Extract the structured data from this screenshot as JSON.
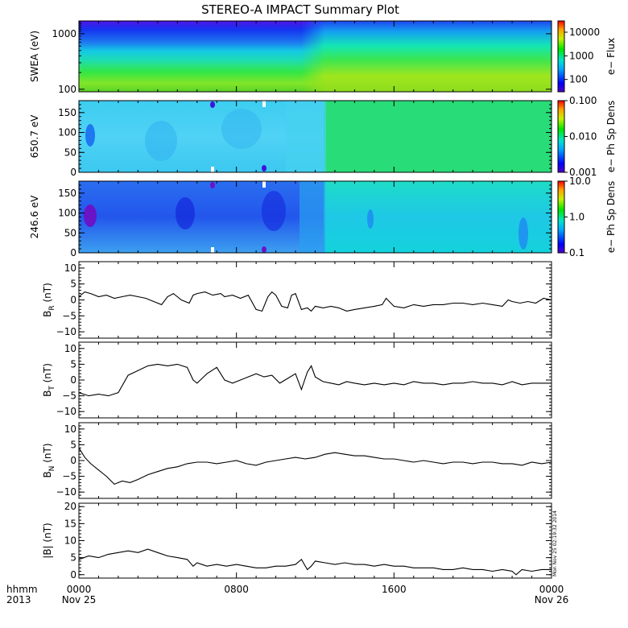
{
  "title": "STEREO-A IMPACT Summary Plot",
  "footer": {
    "format_label": "hhmm",
    "year": "2013",
    "x_ticks": [
      {
        "hour": 0,
        "time": "0000",
        "date": "Nov 25"
      },
      {
        "hour": 8,
        "time": "0800",
        "date": ""
      },
      {
        "hour": 16,
        "time": "1600",
        "date": ""
      },
      {
        "hour": 24,
        "time": "0000",
        "date": "Nov 26"
      }
    ]
  },
  "timestamp": "Mon Nov 25 02:19:32 2014",
  "chart_data": [
    {
      "id": "swea",
      "type": "heatmap",
      "ylabel": "SWEA (eV)",
      "y_scale": "log",
      "ylim": [
        90,
        1700
      ],
      "y_ticks": [
        100,
        1000
      ],
      "y_tick_labels": [
        "100",
        "1000"
      ],
      "colorbar": {
        "label": "e− Flux",
        "scale": "log",
        "range": [
          30,
          30000
        ],
        "ticks": [
          100,
          1000,
          10000
        ],
        "tick_labels": [
          "100",
          "1000",
          "10000"
        ]
      },
      "notes": "high-energy channels ~1500 eV blue/purple, low-energy ~100 eV yellow-green; spectrum hardens after ~12:00"
    },
    {
      "id": "pad650",
      "type": "heatmap",
      "ylabel": "650.7 eV",
      "ylim": [
        0,
        180
      ],
      "y_ticks": [
        0,
        50,
        100,
        150
      ],
      "y_tick_labels": [
        "0",
        "50",
        "100",
        "150"
      ],
      "colorbar": {
        "label": "e− Ph Sp Dens",
        "scale": "log",
        "range": [
          0.001,
          0.1
        ],
        "ticks": [
          0.001,
          0.01,
          0.1
        ],
        "tick_labels": [
          "0.001",
          "0.010",
          "0.100"
        ]
      }
    },
    {
      "id": "pad246",
      "type": "heatmap",
      "ylabel": "246.6 eV",
      "ylim": [
        0,
        180
      ],
      "y_ticks": [
        0,
        50,
        100,
        150
      ],
      "y_tick_labels": [
        "0",
        "50",
        "100",
        "150"
      ],
      "colorbar": {
        "label": "e− Ph Sp Dens",
        "scale": "log",
        "range": [
          0.1,
          10
        ],
        "ticks": [
          0.1,
          1,
          10
        ],
        "tick_labels": [
          "0.1",
          "1.0",
          "10.0"
        ]
      }
    },
    {
      "id": "br",
      "type": "line",
      "ylabel": "B_R (nT)",
      "ylabel_main": "B",
      "ylabel_sub": "R",
      "ylabel_unit": " (nT)",
      "ylim": [
        -12,
        12
      ],
      "y_ticks": [
        -10,
        -5,
        0,
        5,
        10
      ],
      "y_tick_labels": [
        "−10",
        "−5",
        "0",
        "5",
        "10"
      ],
      "x": [
        0,
        0.3,
        0.6,
        1.0,
        1.4,
        1.8,
        2.2,
        2.6,
        3.0,
        3.4,
        3.8,
        4.2,
        4.5,
        4.8,
        5.2,
        5.6,
        5.8,
        6.0,
        6.4,
        6.8,
        7.2,
        7.4,
        7.8,
        8.2,
        8.6,
        9.0,
        9.3,
        9.6,
        9.8,
        10.0,
        10.3,
        10.6,
        10.8,
        11.0,
        11.3,
        11.6,
        11.8,
        12.0,
        12.4,
        12.8,
        13.2,
        13.6,
        14.0,
        14.5,
        15.0,
        15.4,
        15.6,
        16.0,
        16.5,
        17.0,
        17.5,
        18.0,
        18.5,
        19.0,
        19.5,
        20.0,
        20.5,
        21.0,
        21.5,
        21.8,
        22.0,
        22.4,
        22.8,
        23.2,
        23.6,
        24.0
      ],
      "values": [
        1.0,
        2.5,
        2.0,
        1.0,
        1.5,
        0.5,
        1.0,
        1.5,
        1.0,
        0.5,
        -0.5,
        -1.5,
        1.0,
        2.0,
        0.0,
        -1.0,
        1.5,
        2.0,
        2.5,
        1.5,
        2.0,
        1.0,
        1.5,
        0.5,
        1.5,
        -3.0,
        -3.5,
        1.0,
        2.5,
        1.5,
        -2.0,
        -2.5,
        1.5,
        2.0,
        -3.0,
        -2.5,
        -3.5,
        -2.0,
        -2.5,
        -2.0,
        -2.5,
        -3.5,
        -3.0,
        -2.5,
        -2.0,
        -1.5,
        0.5,
        -2.0,
        -2.5,
        -1.5,
        -2.0,
        -1.5,
        -1.5,
        -1.0,
        -1.0,
        -1.5,
        -1.0,
        -1.5,
        -2.0,
        0.0,
        -0.5,
        -1.0,
        -0.5,
        -1.0,
        0.5,
        0.0
      ]
    },
    {
      "id": "bt",
      "type": "line",
      "ylabel": "B_T (nT)",
      "ylabel_main": "B",
      "ylabel_sub": "T",
      "ylabel_unit": " (nT)",
      "ylim": [
        -12,
        12
      ],
      "y_ticks": [
        -10,
        -5,
        0,
        5,
        10
      ],
      "y_tick_labels": [
        "−10",
        "−5",
        "0",
        "5",
        "10"
      ],
      "x": [
        0,
        0.5,
        1.0,
        1.5,
        2.0,
        2.5,
        3.0,
        3.5,
        4.0,
        4.5,
        5.0,
        5.5,
        5.8,
        6.0,
        6.5,
        7.0,
        7.4,
        7.8,
        8.2,
        8.6,
        9.0,
        9.4,
        9.8,
        10.2,
        10.6,
        11.0,
        11.3,
        11.6,
        11.8,
        12.0,
        12.4,
        12.8,
        13.2,
        13.6,
        14.0,
        14.5,
        15.0,
        15.5,
        16.0,
        16.5,
        17.0,
        17.5,
        18.0,
        18.5,
        19.0,
        19.5,
        20.0,
        20.5,
        21.0,
        21.5,
        22.0,
        22.5,
        23.0,
        23.5,
        24.0
      ],
      "values": [
        -4.0,
        -5.0,
        -4.5,
        -5.0,
        -4.0,
        1.5,
        3.0,
        4.5,
        5.0,
        4.5,
        5.0,
        4.0,
        0.0,
        -1.0,
        2.0,
        4.0,
        0.0,
        -1.0,
        0.0,
        1.0,
        2.0,
        1.0,
        1.5,
        -1.0,
        0.5,
        2.0,
        -3.0,
        2.5,
        4.5,
        1.0,
        -0.5,
        -1.0,
        -1.5,
        -0.5,
        -1.0,
        -1.5,
        -1.0,
        -1.5,
        -1.0,
        -1.5,
        -0.5,
        -1.0,
        -1.0,
        -1.5,
        -1.0,
        -1.0,
        -0.5,
        -1.0,
        -1.0,
        -1.5,
        -0.5,
        -1.5,
        -1.0,
        -1.0,
        -1.0
      ]
    },
    {
      "id": "bn",
      "type": "line",
      "ylabel": "B_N (nT)",
      "ylabel_main": "B",
      "ylabel_sub": "N",
      "ylabel_unit": " (nT)",
      "ylim": [
        -12,
        12
      ],
      "y_ticks": [
        -10,
        -5,
        0,
        5,
        10
      ],
      "y_tick_labels": [
        "−10",
        "−5",
        "0",
        "5",
        "10"
      ],
      "x": [
        0,
        0.3,
        0.6,
        1.0,
        1.4,
        1.8,
        2.2,
        2.6,
        3.0,
        3.5,
        4.0,
        4.5,
        5.0,
        5.5,
        6.0,
        6.5,
        7.0,
        7.5,
        8.0,
        8.5,
        9.0,
        9.5,
        10.0,
        10.5,
        11.0,
        11.5,
        12.0,
        12.5,
        13.0,
        13.5,
        14.0,
        14.5,
        15.0,
        15.5,
        16.0,
        16.5,
        17.0,
        17.5,
        18.0,
        18.5,
        19.0,
        19.5,
        20.0,
        20.5,
        21.0,
        21.5,
        22.0,
        22.5,
        23.0,
        23.5,
        24.0
      ],
      "values": [
        4.0,
        1.0,
        -1.0,
        -3.0,
        -5.0,
        -7.5,
        -6.5,
        -7.0,
        -6.0,
        -4.5,
        -3.5,
        -2.5,
        -2.0,
        -1.0,
        -0.5,
        -0.5,
        -1.0,
        -0.5,
        0.0,
        -1.0,
        -1.5,
        -0.5,
        0.0,
        0.5,
        1.0,
        0.5,
        1.0,
        2.0,
        2.5,
        2.0,
        1.5,
        1.5,
        1.0,
        0.5,
        0.5,
        0.0,
        -0.5,
        0.0,
        -0.5,
        -1.0,
        -0.5,
        -0.5,
        -1.0,
        -0.5,
        -0.5,
        -1.0,
        -1.0,
        -1.5,
        -0.5,
        -1.0,
        -0.5
      ]
    },
    {
      "id": "bmag",
      "type": "line",
      "ylabel": "|B| (nT)",
      "ylabel_main": "|B|",
      "ylabel_sub": "",
      "ylabel_unit": " (nT)",
      "ylim": [
        -1,
        21
      ],
      "y_ticks": [
        0,
        5,
        10,
        15,
        20
      ],
      "y_tick_labels": [
        "0",
        "5",
        "10",
        "15",
        "20"
      ],
      "x": [
        0,
        0.5,
        1.0,
        1.5,
        2.0,
        2.5,
        3.0,
        3.5,
        4.0,
        4.5,
        5.0,
        5.5,
        5.8,
        6.0,
        6.5,
        7.0,
        7.5,
        8.0,
        8.5,
        9.0,
        9.5,
        10.0,
        10.5,
        11.0,
        11.3,
        11.6,
        11.8,
        12.0,
        12.5,
        13.0,
        13.5,
        14.0,
        14.5,
        15.0,
        15.5,
        16.0,
        16.5,
        17.0,
        17.5,
        18.0,
        18.5,
        19.0,
        19.5,
        20.0,
        20.5,
        21.0,
        21.5,
        22.0,
        22.2,
        22.5,
        23.0,
        23.5,
        24.0
      ],
      "values": [
        4.5,
        5.5,
        5.0,
        6.0,
        6.5,
        7.0,
        6.5,
        7.5,
        6.5,
        5.5,
        5.0,
        4.5,
        2.5,
        3.5,
        2.5,
        3.0,
        2.5,
        3.0,
        2.5,
        2.0,
        2.0,
        2.5,
        2.5,
        3.0,
        4.5,
        1.5,
        2.5,
        4.0,
        3.5,
        3.0,
        3.5,
        3.0,
        3.0,
        2.5,
        3.0,
        2.5,
        2.5,
        2.0,
        2.0,
        2.0,
        1.5,
        1.5,
        2.0,
        1.5,
        1.5,
        1.0,
        1.5,
        1.0,
        0.0,
        1.5,
        1.0,
        1.5,
        1.5
      ]
    }
  ]
}
